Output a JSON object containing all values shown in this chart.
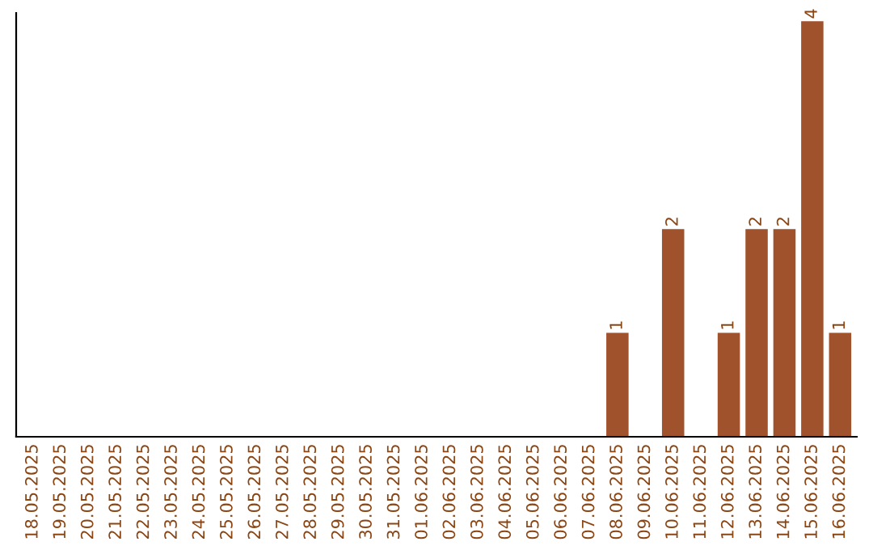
{
  "chart_data": {
    "type": "bar",
    "categories": [
      "18.05.2025",
      "19.05.2025",
      "20.05.2025",
      "21.05.2025",
      "22.05.2025",
      "23.05.2025",
      "24.05.2025",
      "25.05.2025",
      "26.05.2025",
      "27.05.2025",
      "28.05.2025",
      "29.05.2025",
      "30.05.2025",
      "31.05.2025",
      "01.06.2025",
      "02.06.2025",
      "03.06.2025",
      "04.06.2025",
      "05.06.2025",
      "06.06.2025",
      "07.06.2025",
      "08.06.2025",
      "09.06.2025",
      "10.06.2025",
      "11.06.2025",
      "12.06.2025",
      "13.06.2025",
      "14.06.2025",
      "15.06.2025",
      "16.06.2025"
    ],
    "values": [
      null,
      null,
      null,
      null,
      null,
      null,
      null,
      null,
      null,
      null,
      null,
      null,
      null,
      null,
      null,
      null,
      null,
      null,
      null,
      null,
      null,
      1,
      null,
      2,
      null,
      1,
      2,
      2,
      4,
      1
    ],
    "color": "#a0522d",
    "data_labels": true,
    "tick_labels": "x",
    "grid": false,
    "legend": false
  }
}
